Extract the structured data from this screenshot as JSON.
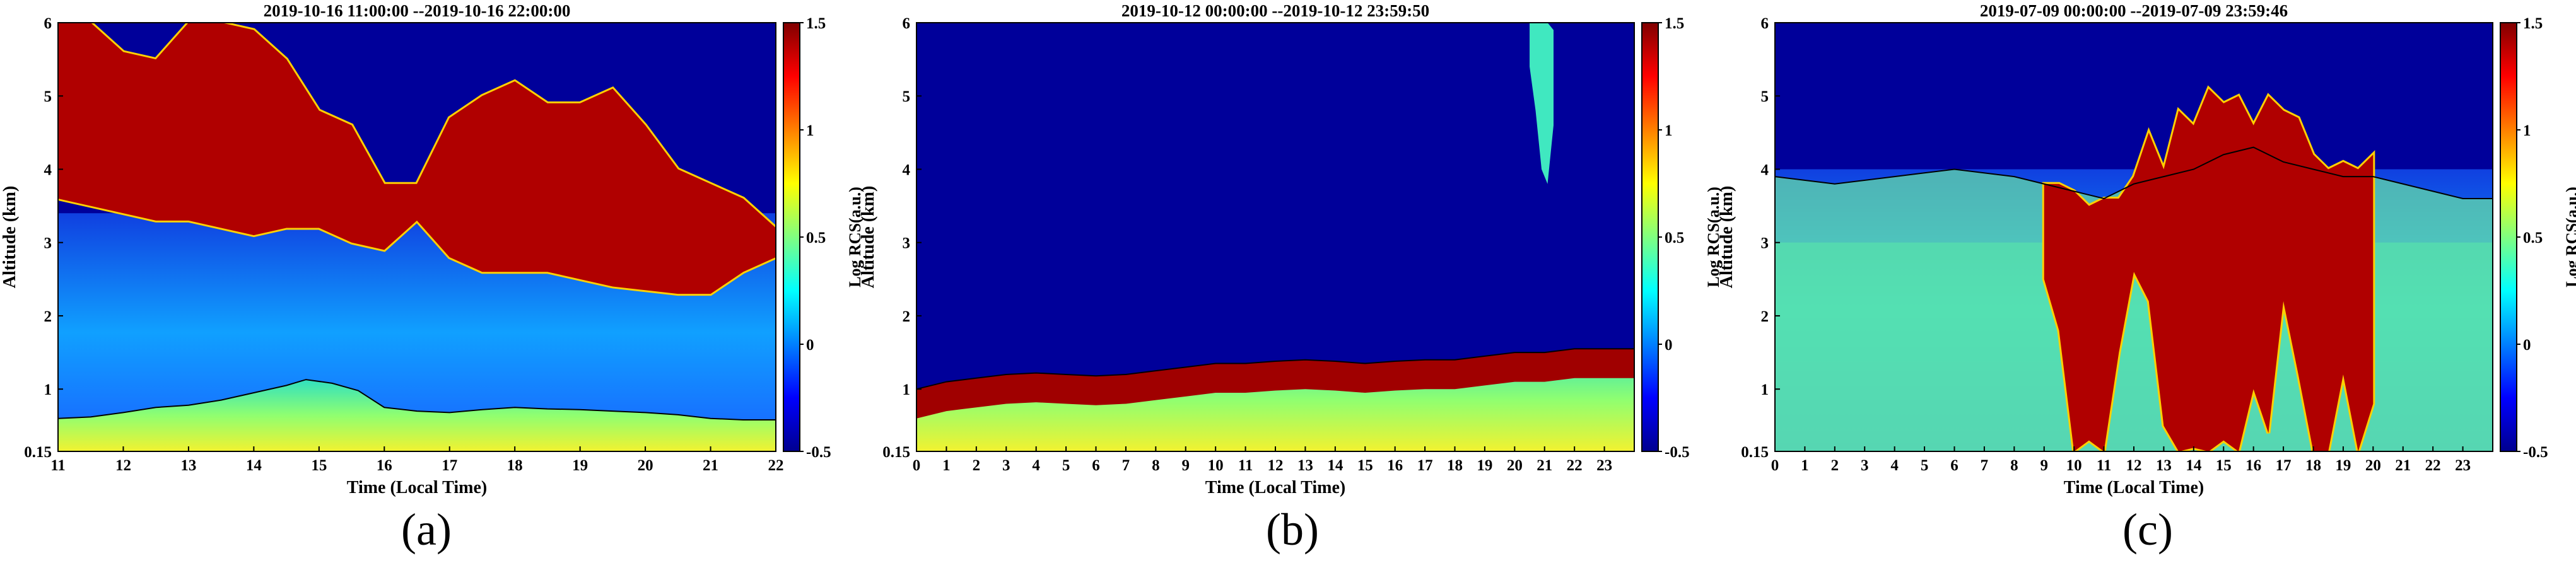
{
  "colorbar_colors": [
    "#00008f",
    "#0000ff",
    "#0080ff",
    "#00ffff",
    "#80ff80",
    "#ffff00",
    "#ff8000",
    "#ff0000",
    "#800000"
  ],
  "chart_data": [
    {
      "type": "heatmap",
      "panel_label": "(a)",
      "title": "2019-10-16 11:00:00 --2019-10-16 22:00:00",
      "xlabel": "Time (Local Time)",
      "ylabel": "Altitude (km)",
      "colorbar_label": "Log RCS(a.u.)",
      "xlim": [
        11,
        22
      ],
      "ylim": [
        0.15,
        6
      ],
      "x_ticks": [
        "11",
        "12",
        "13",
        "14",
        "15",
        "16",
        "17",
        "18",
        "19",
        "20",
        "21",
        "22"
      ],
      "y_ticks": [
        "0.15",
        "1",
        "2",
        "3",
        "4",
        "5",
        "6"
      ],
      "colorbar_range": [
        -0.5,
        1.5
      ],
      "colorbar_ticks": [
        "-0.5",
        "0",
        "0.5",
        "1",
        "1.5"
      ],
      "boundary_line": {
        "x": [
          11.0,
          11.5,
          12.0,
          12.5,
          13.0,
          13.5,
          14.0,
          14.5,
          14.8,
          15.2,
          15.6,
          16.0,
          16.5,
          17.0,
          17.5,
          18.0,
          18.5,
          19.0,
          19.5,
          20.0,
          20.5,
          21.0,
          21.5,
          22.0
        ],
        "y": [
          0.6,
          0.62,
          0.68,
          0.75,
          0.78,
          0.85,
          0.95,
          1.05,
          1.13,
          1.08,
          0.98,
          0.75,
          0.7,
          0.68,
          0.72,
          0.75,
          0.73,
          0.72,
          0.7,
          0.68,
          0.65,
          0.6,
          0.58,
          0.58
        ]
      },
      "cloud_layer": {
        "x": [
          11.0,
          11.5,
          12.0,
          12.5,
          13.0,
          13.5,
          14.0,
          14.5,
          15.0,
          15.5,
          16.0,
          16.5,
          17.0,
          17.5,
          18.0,
          18.5,
          19.0,
          19.5,
          20.0,
          20.5,
          21.0,
          21.5,
          22.0
        ],
        "base": [
          3.6,
          3.5,
          3.4,
          3.3,
          3.3,
          3.2,
          3.1,
          3.2,
          3.2,
          3.0,
          2.9,
          3.3,
          2.8,
          2.6,
          2.6,
          2.6,
          2.5,
          2.4,
          2.35,
          2.3,
          2.3,
          2.6,
          2.8
        ],
        "top": [
          6.0,
          6.0,
          5.6,
          5.5,
          6.0,
          6.0,
          5.9,
          5.5,
          4.8,
          4.6,
          3.8,
          3.8,
          4.7,
          5.0,
          5.2,
          4.9,
          4.9,
          5.1,
          4.6,
          4.0,
          3.8,
          3.6,
          3.2
        ]
      }
    },
    {
      "type": "heatmap",
      "panel_label": "(b)",
      "title": "2019-10-12 00:00:00 --2019-10-12 23:59:50",
      "xlabel": "Time (Local Time)",
      "ylabel": "Altitude (km)",
      "colorbar_label": "Log RCS(a.u.)",
      "xlim": [
        0,
        24
      ],
      "ylim": [
        0.15,
        6
      ],
      "x_ticks": [
        "0",
        "1",
        "2",
        "3",
        "4",
        "5",
        "6",
        "7",
        "8",
        "9",
        "10",
        "11",
        "12",
        "13",
        "14",
        "15",
        "16",
        "17",
        "18",
        "19",
        "20",
        "21",
        "22",
        "23"
      ],
      "y_ticks": [
        "0.15",
        "1",
        "2",
        "3",
        "4",
        "5",
        "6"
      ],
      "colorbar_range": [
        -0.5,
        1.5
      ],
      "colorbar_ticks": [
        "-0.5",
        "0",
        "0.5",
        "1",
        "1.5"
      ],
      "boundary_line": {
        "x": [
          0,
          1,
          2,
          3,
          4,
          5,
          6,
          7,
          8,
          9,
          10,
          11,
          12,
          13,
          14,
          15,
          16,
          17,
          18,
          19,
          20,
          21,
          22,
          23,
          24
        ],
        "y": [
          1.0,
          1.1,
          1.15,
          1.2,
          1.22,
          1.2,
          1.18,
          1.2,
          1.25,
          1.3,
          1.35,
          1.35,
          1.38,
          1.4,
          1.38,
          1.35,
          1.38,
          1.4,
          1.4,
          1.45,
          1.5,
          1.5,
          1.55,
          1.55,
          1.55
        ]
      },
      "cloud_layer": {
        "x": [
          20.5,
          20.7,
          20.9,
          21.1,
          21.3
        ],
        "base": [
          5.4,
          4.8,
          4.0,
          3.8,
          4.6
        ],
        "top": [
          6.0,
          6.0,
          6.0,
          6.0,
          5.9
        ]
      }
    },
    {
      "type": "heatmap",
      "panel_label": "(c)",
      "title": "2019-07-09 00:00:00 --2019-07-09 23:59:46",
      "xlabel": "Time (Local Time)",
      "ylabel": "Altitude (km)",
      "colorbar_label": "Log RCS(a.u.)",
      "xlim": [
        0,
        24
      ],
      "ylim": [
        0.15,
        6
      ],
      "x_ticks": [
        "0",
        "1",
        "2",
        "3",
        "4",
        "5",
        "6",
        "7",
        "8",
        "9",
        "10",
        "11",
        "12",
        "13",
        "14",
        "15",
        "16",
        "17",
        "18",
        "19",
        "20",
        "21",
        "22",
        "23"
      ],
      "y_ticks": [
        "0.15",
        "1",
        "2",
        "3",
        "4",
        "5",
        "6"
      ],
      "colorbar_range": [
        -0.5,
        1.5
      ],
      "colorbar_ticks": [
        "-0.5",
        "0",
        "0.5",
        "1",
        "1.5"
      ],
      "boundary_line": {
        "x": [
          0,
          2,
          4,
          6,
          8,
          9,
          10,
          11,
          12,
          13,
          14,
          15,
          16,
          17,
          18,
          19,
          20,
          21,
          22,
          23,
          24
        ],
        "y": [
          3.9,
          3.8,
          3.9,
          4.0,
          3.9,
          3.8,
          3.7,
          3.6,
          3.8,
          3.9,
          4.0,
          4.2,
          4.3,
          4.1,
          4.0,
          3.9,
          3.9,
          3.8,
          3.7,
          3.6,
          3.6
        ]
      },
      "cloud_layer": {
        "x": [
          9.0,
          9.5,
          10.0,
          10.5,
          11.0,
          11.5,
          12.0,
          12.5,
          13.0,
          13.5,
          14.0,
          14.5,
          15.0,
          15.5,
          16.0,
          16.5,
          17.0,
          17.5,
          18.0,
          18.5,
          19.0,
          19.5,
          20.0
        ],
        "base": [
          2.5,
          1.8,
          0.15,
          0.3,
          0.15,
          1.5,
          2.6,
          2.2,
          0.5,
          0.15,
          0.2,
          0.15,
          0.3,
          0.15,
          1.0,
          0.4,
          2.2,
          1.2,
          0.15,
          0.15,
          1.2,
          0.15,
          0.8
        ],
        "top": [
          3.8,
          3.8,
          3.7,
          3.5,
          3.6,
          3.6,
          3.9,
          4.5,
          4.0,
          4.8,
          4.6,
          5.1,
          4.9,
          5.0,
          4.6,
          5.0,
          4.8,
          4.7,
          4.2,
          4.0,
          4.1,
          4.0,
          4.2
        ]
      }
    }
  ]
}
